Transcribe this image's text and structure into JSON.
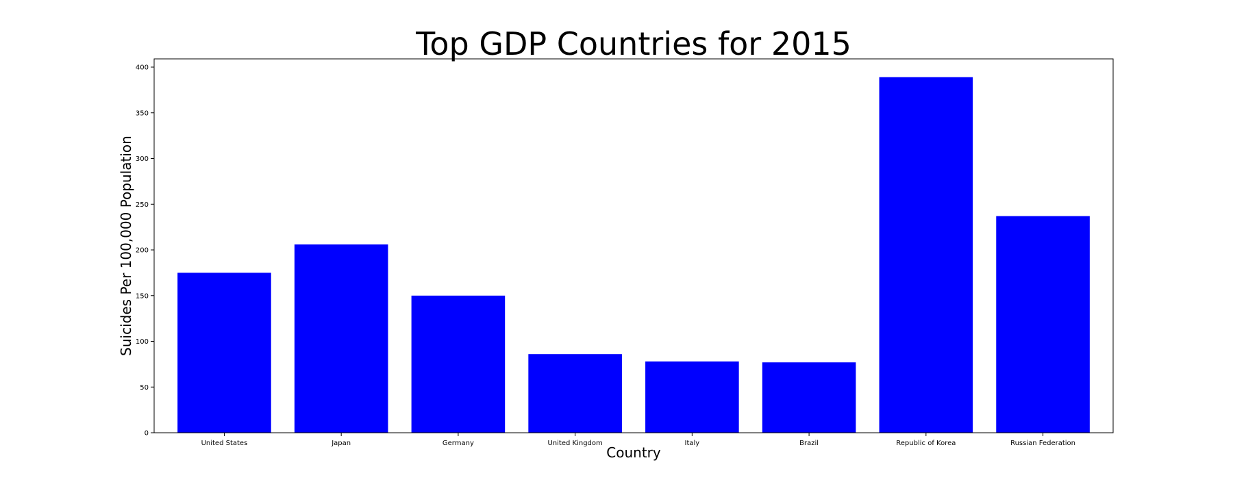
{
  "chart_data": {
    "type": "bar",
    "title": "Top GDP Countries for 2015",
    "xlabel": "Country",
    "ylabel": "Suicides Per 100,000 Population",
    "categories": [
      "United States",
      "Japan",
      "Germany",
      "United Kingdom",
      "Italy",
      "Brazil",
      "Republic of Korea",
      "Russian Federation"
    ],
    "values": [
      175,
      206,
      150,
      86,
      78,
      77,
      389,
      237
    ],
    "ylim": [
      0,
      409
    ],
    "yticks": [
      0,
      50,
      100,
      150,
      200,
      250,
      300,
      350,
      400
    ],
    "grid": false,
    "bar_color": "#0000ff"
  }
}
